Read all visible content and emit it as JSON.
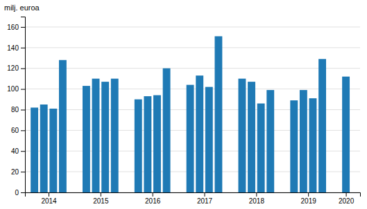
{
  "chart_data": {
    "type": "bar",
    "ylabel": "milj. euroa",
    "categories": [
      "2014",
      null,
      null,
      null,
      "2015",
      null,
      null,
      null,
      "2016",
      null,
      null,
      null,
      "2017",
      null,
      null,
      null,
      "2018",
      null,
      null,
      null,
      "2019",
      null,
      null,
      null,
      "2020"
    ],
    "values": [
      82,
      85,
      81,
      128,
      103,
      110,
      107,
      110,
      90,
      93,
      94,
      120,
      104,
      113,
      102,
      151,
      110,
      107,
      86,
      99,
      89,
      99,
      91,
      129,
      112
    ],
    "color": "#1f7ab5",
    "ylim": [
      0,
      170
    ],
    "yticks": [
      0,
      20,
      40,
      60,
      80,
      100,
      120,
      140,
      160
    ],
    "grid": true
  }
}
